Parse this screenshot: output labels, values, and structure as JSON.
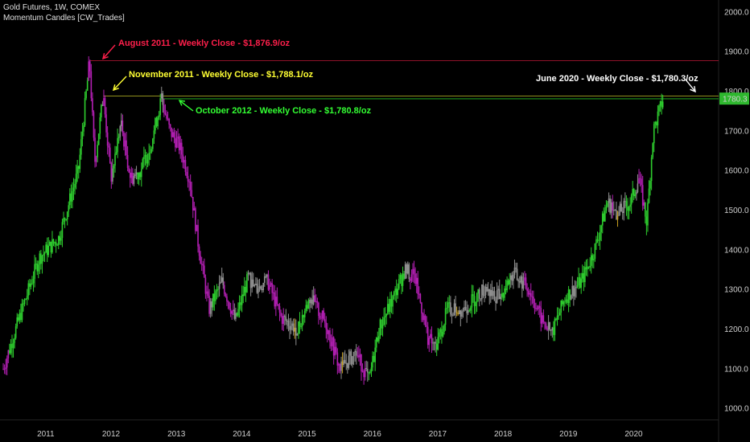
{
  "header": {
    "symbol_line": "Gold Futures, 1W, COMEX",
    "indicator_line": "Momentum Candles [CW_Trades]"
  },
  "price_label": "1780.3",
  "colors": {
    "background": "#000000",
    "bull": "#2ecc2e",
    "bear": "#b21fb2",
    "neutral": "#8f8f8f",
    "caution": "#c8a020",
    "red_annotation": "#ff1f4b",
    "yellow_annotation": "#ffff33",
    "green_annotation": "#33ff33",
    "white_annotation": "#ffffff"
  },
  "chart_data": {
    "type": "line",
    "title": "",
    "xlabel": "",
    "ylabel": "",
    "x_ticks": [
      "2011",
      "2012",
      "2013",
      "2014",
      "2015",
      "2016",
      "2017",
      "2018",
      "2019",
      "2020"
    ],
    "y_ticks": [
      1000,
      1100,
      1200,
      1300,
      1400,
      1500,
      1600,
      1700,
      1800,
      1900,
      2000
    ],
    "ylim": [
      972,
      2030
    ],
    "xlim": [
      2010.3,
      2021.3
    ],
    "series": [
      {
        "x": [
          2010.35,
          2010.6,
          2010.9,
          2011.2,
          2011.5,
          2011.67,
          2011.75,
          2011.88,
          2012.0,
          2012.15,
          2012.3,
          2012.45,
          2012.6,
          2012.77,
          2012.9,
          2013.05,
          2013.2,
          2013.33,
          2013.5,
          2013.7,
          2013.9,
          2014.1,
          2014.2,
          2014.4,
          2014.6,
          2014.85,
          2015.05,
          2015.3,
          2015.5,
          2015.75,
          2015.95,
          2016.1,
          2016.3,
          2016.5,
          2016.65,
          2016.85,
          2016.97,
          2017.15,
          2017.4,
          2017.7,
          2017.95,
          2018.15,
          2018.4,
          2018.6,
          2018.75,
          2018.95,
          2019.2,
          2019.4,
          2019.6,
          2019.75,
          2019.95,
          2020.08,
          2020.2,
          2020.3,
          2020.45
        ],
        "values": [
          1100,
          1230,
          1380,
          1430,
          1600,
          1876.9,
          1620,
          1788.1,
          1580,
          1720,
          1580,
          1600,
          1660,
          1780.8,
          1700,
          1660,
          1580,
          1420,
          1250,
          1320,
          1220,
          1330,
          1300,
          1320,
          1230,
          1200,
          1280,
          1210,
          1100,
          1140,
          1070,
          1200,
          1270,
          1350,
          1330,
          1180,
          1150,
          1250,
          1250,
          1300,
          1280,
          1340,
          1300,
          1220,
          1190,
          1280,
          1320,
          1400,
          1520,
          1490,
          1520,
          1580,
          1470,
          1700,
          1780.3
        ]
      }
    ],
    "annotations": [
      {
        "text": "August 2011 - Weekly Close - $1,876.9/oz",
        "x": 2011.67,
        "y": 1876.9,
        "color": "red"
      },
      {
        "text": "November 2011 - Weekly Close - $1,788.1/oz",
        "x": 2011.88,
        "y": 1788.1,
        "color": "yellow"
      },
      {
        "text": "October 2012 - Weekly Close - $1,780.8/oz",
        "x": 2012.77,
        "y": 1780.8,
        "color": "green"
      },
      {
        "text": "June 2020 - Weekly Close - $1,780.3/oz",
        "x": 2020.45,
        "y": 1780.3,
        "color": "white"
      }
    ],
    "horizontal_lines": [
      1876.9,
      1788.1,
      1780.8
    ],
    "grid": false,
    "legend": "none"
  }
}
